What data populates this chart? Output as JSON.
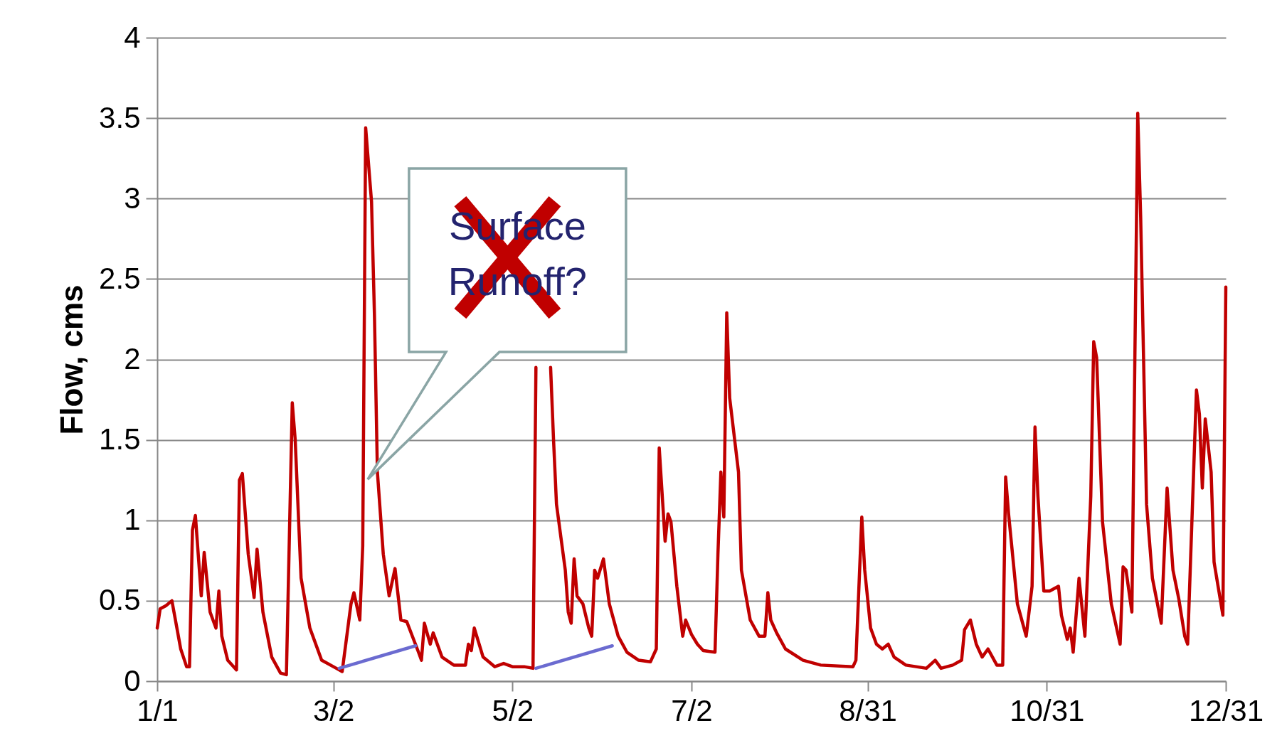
{
  "chart_data": {
    "type": "line",
    "ylabel": "Flow, cms",
    "x": [
      "--01-01",
      "--01-02",
      "--01-04",
      "--01-06",
      "--01-09",
      "--01-11",
      "--01-12",
      "--01-13",
      "--01-14",
      "--01-16",
      "--01-17",
      "--01-19",
      "--01-21",
      "--01-22",
      "--01-23",
      "--01-25",
      "--01-28",
      "--01-29",
      "--01-30",
      "--02-01",
      "--02-03",
      "--02-04",
      "--02-06",
      "--02-09",
      "--02-12",
      "--02-14",
      "--02-16",
      "--02-17",
      "--02-19",
      "--02-22",
      "--02-26",
      "--03-03",
      "--03-05",
      "--03-08",
      "--03-09",
      "--03-11",
      "--03-12",
      "--03-13",
      "--03-15",
      "--03-16",
      "--03-17",
      "--03-19",
      "--03-21",
      "--03-23",
      "--03-25",
      "--03-27",
      "--03-31",
      "--04-01",
      "--04-02",
      "--04-04",
      "--04-05",
      "--04-08",
      "--04-12",
      "--04-16",
      "--04-17",
      "--04-18",
      "--04-19",
      "--04-22",
      "--04-26",
      "--04-29",
      "--05-02",
      "--05-06",
      "--05-09",
      "--05-10",
      "--05-11",
      "--05-15",
      "--05-16",
      "--05-17",
      "--05-20",
      "--05-21",
      "--05-22",
      "--05-23",
      "--05-24",
      "--05-26",
      "--05-28",
      "--05-29",
      "--05-30",
      "--05-31",
      "--06-02",
      "--06-04",
      "--06-07",
      "--06-10",
      "--06-14",
      "--06-18",
      "--06-20",
      "--06-21",
      "--06-23",
      "--06-24",
      "--06-25",
      "--06-27",
      "--06-29",
      "--06-30",
      "--07-02",
      "--07-04",
      "--07-06",
      "--07-10",
      "--07-11",
      "--07-12",
      "--07-13",
      "--07-14",
      "--07-15",
      "--07-18",
      "--07-19",
      "--07-22",
      "--07-25",
      "--07-27",
      "--07-28",
      "--07-29",
      "--07-31",
      "--08-03",
      "--08-09",
      "--08-15",
      "--08-26",
      "--08-27",
      "--08-29",
      "--08-30",
      "--09-01",
      "--09-03",
      "--09-05",
      "--09-07",
      "--09-09",
      "--09-13",
      "--09-20",
      "--09-23",
      "--09-25",
      "--09-29",
      "--10-02",
      "--10-03",
      "--10-05",
      "--10-07",
      "--10-09",
      "--10-11",
      "--10-14",
      "--10-16",
      "--10-17",
      "--10-18",
      "--10-21",
      "--10-24",
      "--10-26",
      "--10-27",
      "--10-28",
      "--10-30",
      "--11-01",
      "--11-04",
      "--11-05",
      "--11-07",
      "--11-08",
      "--11-09",
      "--11-11",
      "--11-13",
      "--11-15",
      "--11-16",
      "--11-17",
      "--11-19",
      "--11-22",
      "--11-25",
      "--11-26",
      "--11-27",
      "--11-29",
      "--12-01",
      "--12-02",
      "--12-04",
      "--12-06",
      "--12-09",
      "--12-11",
      "--12-13",
      "--12-15",
      "--12-17",
      "--12-18",
      "--12-21",
      "--12-22",
      "--12-23",
      "--12-24",
      "--12-26",
      "--12-27",
      "--12-30",
      "--12-31"
    ],
    "series": [
      {
        "color": "#c00000",
        "values": [
          0.33,
          0.45,
          0.47,
          0.5,
          0.2,
          0.09,
          0.09,
          0.94,
          1.03,
          0.53,
          0.8,
          0.43,
          0.33,
          0.56,
          0.28,
          0.13,
          0.07,
          1.25,
          1.29,
          0.79,
          0.52,
          0.82,
          0.43,
          0.15,
          0.05,
          0.04,
          1.73,
          1.5,
          0.64,
          0.33,
          0.13,
          0.08,
          0.06,
          0.48,
          0.55,
          0.38,
          0.84,
          3.44,
          2.98,
          2.27,
          1.3,
          0.79,
          0.53,
          0.7,
          0.38,
          0.37,
          0.18,
          0.13,
          0.36,
          0.23,
          0.3,
          0.15,
          0.1,
          0.1,
          0.23,
          0.19,
          0.33,
          0.15,
          0.09,
          0.11,
          0.09,
          0.09,
          0.08,
          1.95,
          null,
          1.95,
          1.5,
          1.1,
          0.69,
          0.43,
          0.36,
          0.76,
          0.53,
          0.48,
          0.33,
          0.28,
          0.69,
          0.64,
          0.76,
          0.48,
          0.28,
          0.18,
          0.13,
          0.12,
          0.2,
          1.45,
          0.87,
          1.04,
          0.99,
          0.59,
          0.28,
          0.38,
          0.29,
          0.23,
          0.19,
          0.18,
          0.79,
          1.3,
          1.02,
          2.29,
          1.76,
          1.3,
          0.69,
          0.38,
          0.28,
          0.28,
          0.55,
          0.38,
          0.3,
          0.2,
          0.13,
          0.1,
          0.09,
          0.13,
          1.02,
          0.69,
          0.33,
          0.23,
          0.2,
          0.23,
          0.15,
          0.1,
          0.08,
          0.13,
          0.08,
          0.1,
          0.13,
          0.32,
          0.38,
          0.23,
          0.15,
          0.2,
          0.1,
          0.1,
          1.27,
          1.04,
          0.48,
          0.28,
          0.59,
          1.58,
          1.15,
          0.56,
          0.56,
          0.59,
          0.41,
          0.26,
          0.33,
          0.18,
          0.64,
          0.28,
          1.15,
          2.11,
          2.01,
          0.99,
          0.48,
          0.23,
          0.71,
          0.69,
          0.43,
          3.53,
          2.88,
          1.1,
          0.64,
          0.36,
          1.2,
          0.69,
          0.51,
          0.28,
          0.23,
          1.81,
          1.66,
          1.2,
          1.63,
          1.3,
          0.74,
          0.41,
          2.45
        ]
      },
      {
        "type": "line",
        "color": "#6b6bd0",
        "x": [
          "--03-04",
          "--03-30"
        ],
        "values": [
          0.08,
          0.22
        ]
      },
      {
        "type": "line",
        "color": "#6b6bd0",
        "x": [
          "--05-10",
          "--06-05"
        ],
        "values": [
          0.08,
          0.22
        ]
      }
    ],
    "xlim": [
      "--01-01",
      "--12-31"
    ],
    "xticks": [
      {
        "value": "--01-01",
        "label": "1/1"
      },
      {
        "value": "--03-02",
        "label": "3/2"
      },
      {
        "value": "--05-02",
        "label": "5/2"
      },
      {
        "value": "--07-02",
        "label": "7/2"
      },
      {
        "value": "--08-31",
        "label": "8/31"
      },
      {
        "value": "--10-31",
        "label": "10/31"
      },
      {
        "value": "--12-31",
        "label": "12/31"
      }
    ],
    "ylim": [
      0,
      4
    ],
    "yticks": [
      0,
      0.5,
      1,
      1.5,
      2,
      2.5,
      3,
      3.5,
      4
    ],
    "grid": "y",
    "annotations": [
      "Surface Runoff?"
    ]
  }
}
